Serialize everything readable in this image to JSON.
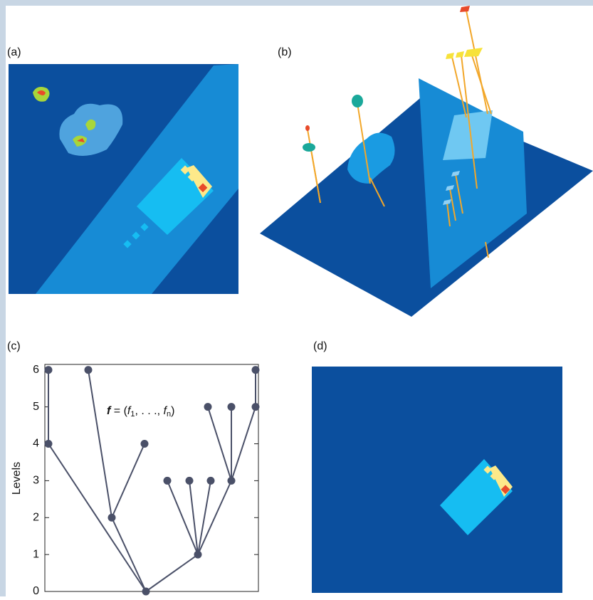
{
  "panels": [
    {
      "label": "(a)"
    },
    {
      "label": "(b)"
    },
    {
      "label": "(c)"
    },
    {
      "label": "(d)"
    }
  ],
  "chart_data": {
    "type": "tree",
    "ylabel": "Levels",
    "formula": [
      "f",
      " = (",
      "f",
      "1",
      ", . . ., ",
      "f",
      "n",
      ")"
    ],
    "ylim": [
      0,
      6.15
    ],
    "yticks": [
      0,
      1,
      2,
      3,
      4,
      5,
      6
    ],
    "tree": {
      "level": 0,
      "children": [
        {
          "level": 4,
          "children": [
            {
              "level": 6,
              "children": []
            }
          ]
        },
        {
          "level": 2,
          "children": [
            {
              "level": 6,
              "children": []
            },
            {
              "level": 4,
              "children": []
            }
          ]
        },
        {
          "level": 1,
          "children": [
            {
              "level": 3,
              "children": []
            },
            {
              "level": 3,
              "children": []
            },
            {
              "level": 3,
              "children": []
            },
            {
              "level": 3,
              "children": [
                {
                  "level": 5,
                  "children": []
                },
                {
                  "level": 5,
                  "children": []
                },
                {
                  "level": 5,
                  "children": [
                    {
                      "level": 6,
                      "children": []
                    }
                  ]
                }
              ]
            }
          ]
        }
      ]
    }
  }
}
